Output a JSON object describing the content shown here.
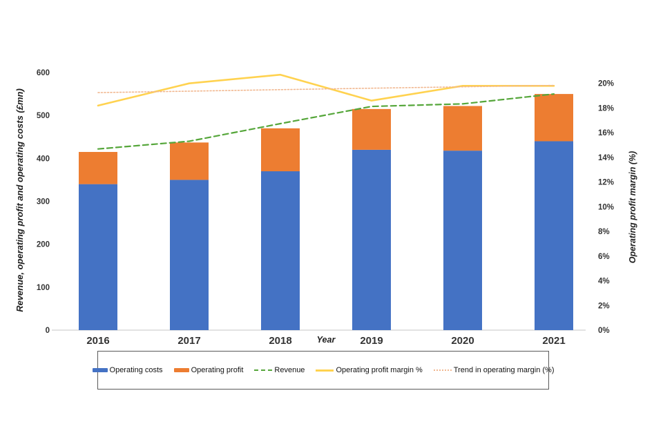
{
  "colors": {
    "operating_costs": "#4472C4",
    "operating_profit": "#ED7D31",
    "revenue": "#55A63A",
    "margin": "#FFD24F",
    "trend": "#F1B78F",
    "axis_text": "#333333",
    "baseline": "#D9D9D9",
    "legend_border": "#595959"
  },
  "chart_data": {
    "type": "combo-stacked-bar-line",
    "categories": [
      "2016",
      "2017",
      "2018",
      "2019",
      "2020",
      "2021"
    ],
    "bar_series": [
      {
        "name": "Operating costs",
        "values": [
          340,
          350,
          370,
          420,
          418,
          440
        ],
        "color": "#4472C4"
      },
      {
        "name": "Operating profit",
        "values": [
          75,
          87,
          100,
          95,
          104,
          110
        ],
        "color": "#ED7D31"
      }
    ],
    "line_series": [
      {
        "name": "Revenue",
        "axis": "left",
        "style": "dashed",
        "color": "#55A63A",
        "values": [
          422,
          440,
          481,
          521,
          527,
          550
        ]
      },
      {
        "name": "Operating profit margin %",
        "axis": "right",
        "style": "solid",
        "color": "#FFD24F",
        "values": [
          18.2,
          20.0,
          20.7,
          18.6,
          19.8,
          19.8
        ]
      },
      {
        "name": "Trend in operating margin (%)",
        "axis": "right",
        "style": "dotted",
        "color": "#F1B78F",
        "values": [
          19.25,
          19.37,
          19.49,
          19.61,
          19.72,
          19.84
        ]
      }
    ],
    "xlabel": "Year",
    "y_left_label": "Revenue, operating profit and operating costs (£mn)",
    "y_right_label": "Operating profit margin (%)",
    "y_left_ticks": [
      "0",
      "100",
      "200",
      "300",
      "400",
      "500",
      "600"
    ],
    "y_right_ticks": [
      "0%",
      "2%",
      "4%",
      "6%",
      "8%",
      "10%",
      "12%",
      "14%",
      "16%",
      "18%",
      "20%"
    ],
    "ylim_left": [
      0,
      600
    ],
    "ylim_right": [
      0,
      20
    ],
    "grid": false,
    "legend_position": "bottom"
  }
}
